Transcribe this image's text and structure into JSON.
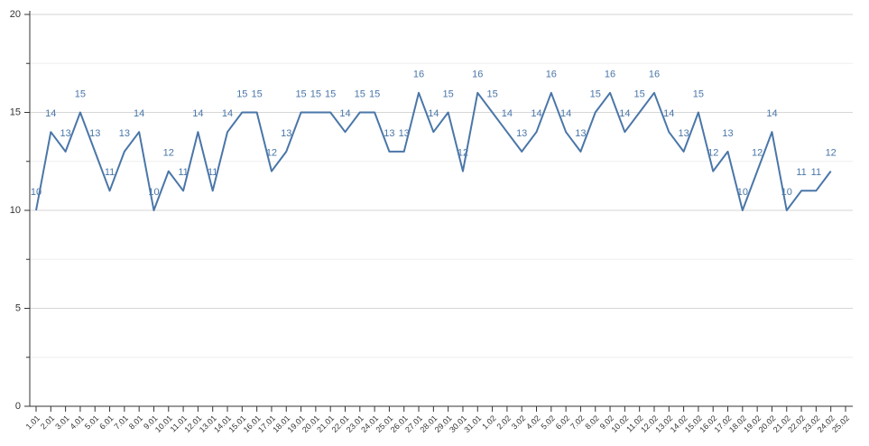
{
  "chart_data": {
    "type": "line",
    "categories": [
      "1.01",
      "2.01",
      "3.01",
      "4.01",
      "5.01",
      "6.01",
      "7.01",
      "8.01",
      "9.01",
      "10.01",
      "11.01",
      "12.01",
      "13.01",
      "14.01",
      "15.01",
      "16.01",
      "17.01",
      "18.01",
      "19.01",
      "20.01",
      "21.01",
      "22.01",
      "23.01",
      "24.01",
      "25.01",
      "26.01",
      "27.01",
      "28.01",
      "29.01",
      "30.01",
      "31.01",
      "1.02",
      "2.02",
      "3.02",
      "4.02",
      "5.02",
      "6.02",
      "7.02",
      "8.02",
      "9.02",
      "10.02",
      "11.02",
      "12.02",
      "13.02",
      "14.02",
      "15.02",
      "16.02",
      "17.02",
      "18.02",
      "19.02",
      "20.02",
      "21.02",
      "22.02",
      "23.02",
      "24.02",
      "25.02"
    ],
    "values": [
      10,
      14,
      13,
      15,
      13,
      11,
      13,
      14,
      10,
      12,
      11,
      14,
      11,
      14,
      15,
      15,
      12,
      13,
      15,
      15,
      15,
      14,
      15,
      15,
      13,
      13,
      16,
      14,
      15,
      12,
      16,
      15,
      14,
      13,
      14,
      16,
      14,
      13,
      15,
      16,
      14,
      15,
      16,
      14,
      13,
      15,
      12,
      13,
      10,
      12,
      14,
      10,
      11,
      11,
      12,
      null
    ],
    "color": "#4a76a8",
    "ylim": [
      0,
      20
    ],
    "yticks": [
      0,
      5,
      10,
      15,
      20
    ],
    "yminor_ticks": [
      2.5,
      7.5,
      12.5,
      17.5
    ],
    "grid": true
  }
}
